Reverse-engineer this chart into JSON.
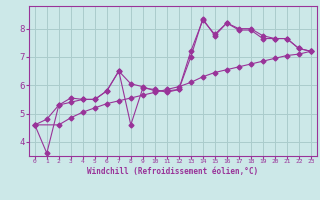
{
  "xlabel": "Windchill (Refroidissement éolien,°C)",
  "background_color": "#cce8e8",
  "grid_color": "#aacccc",
  "line_color": "#993399",
  "xlim": [
    -0.5,
    23.5
  ],
  "ylim": [
    3.5,
    8.8
  ],
  "yticks": [
    4,
    5,
    6,
    7,
    8
  ],
  "xticks": [
    0,
    1,
    2,
    3,
    4,
    5,
    6,
    7,
    8,
    9,
    10,
    11,
    12,
    13,
    14,
    15,
    16,
    17,
    18,
    19,
    20,
    21,
    22,
    23
  ],
  "line1_x": [
    0,
    1,
    2,
    3,
    4,
    5,
    6,
    7,
    8,
    9,
    10,
    11,
    12,
    13,
    14,
    15,
    16,
    17,
    18,
    19,
    20,
    21,
    22,
    23
  ],
  "line1_y": [
    4.6,
    4.8,
    5.3,
    5.55,
    5.5,
    5.5,
    5.8,
    6.5,
    6.05,
    5.95,
    5.8,
    5.8,
    5.85,
    7.2,
    8.3,
    7.8,
    8.2,
    8.0,
    8.0,
    7.75,
    7.65,
    7.65,
    7.3,
    7.2
  ],
  "line2_x": [
    0,
    1,
    2,
    3,
    4,
    5,
    6,
    7,
    8,
    9,
    10,
    11,
    12,
    13,
    14,
    15,
    16,
    17,
    18,
    19,
    20,
    21,
    22,
    23
  ],
  "line2_y": [
    4.6,
    3.6,
    5.3,
    5.4,
    5.5,
    5.5,
    5.8,
    6.5,
    4.6,
    5.9,
    5.85,
    5.75,
    5.85,
    7.0,
    8.35,
    7.75,
    8.2,
    7.95,
    7.95,
    7.65,
    7.65,
    7.65,
    7.3,
    7.2
  ],
  "line3_x": [
    0,
    2,
    3,
    4,
    5,
    6,
    7,
    8,
    9,
    10,
    11,
    12,
    13,
    14,
    15,
    16,
    17,
    18,
    19,
    20,
    21,
    22,
    23
  ],
  "line3_y": [
    4.6,
    4.6,
    4.85,
    5.05,
    5.2,
    5.35,
    5.45,
    5.55,
    5.65,
    5.75,
    5.85,
    5.95,
    6.1,
    6.3,
    6.45,
    6.55,
    6.65,
    6.75,
    6.85,
    6.95,
    7.05,
    7.1,
    7.2
  ]
}
